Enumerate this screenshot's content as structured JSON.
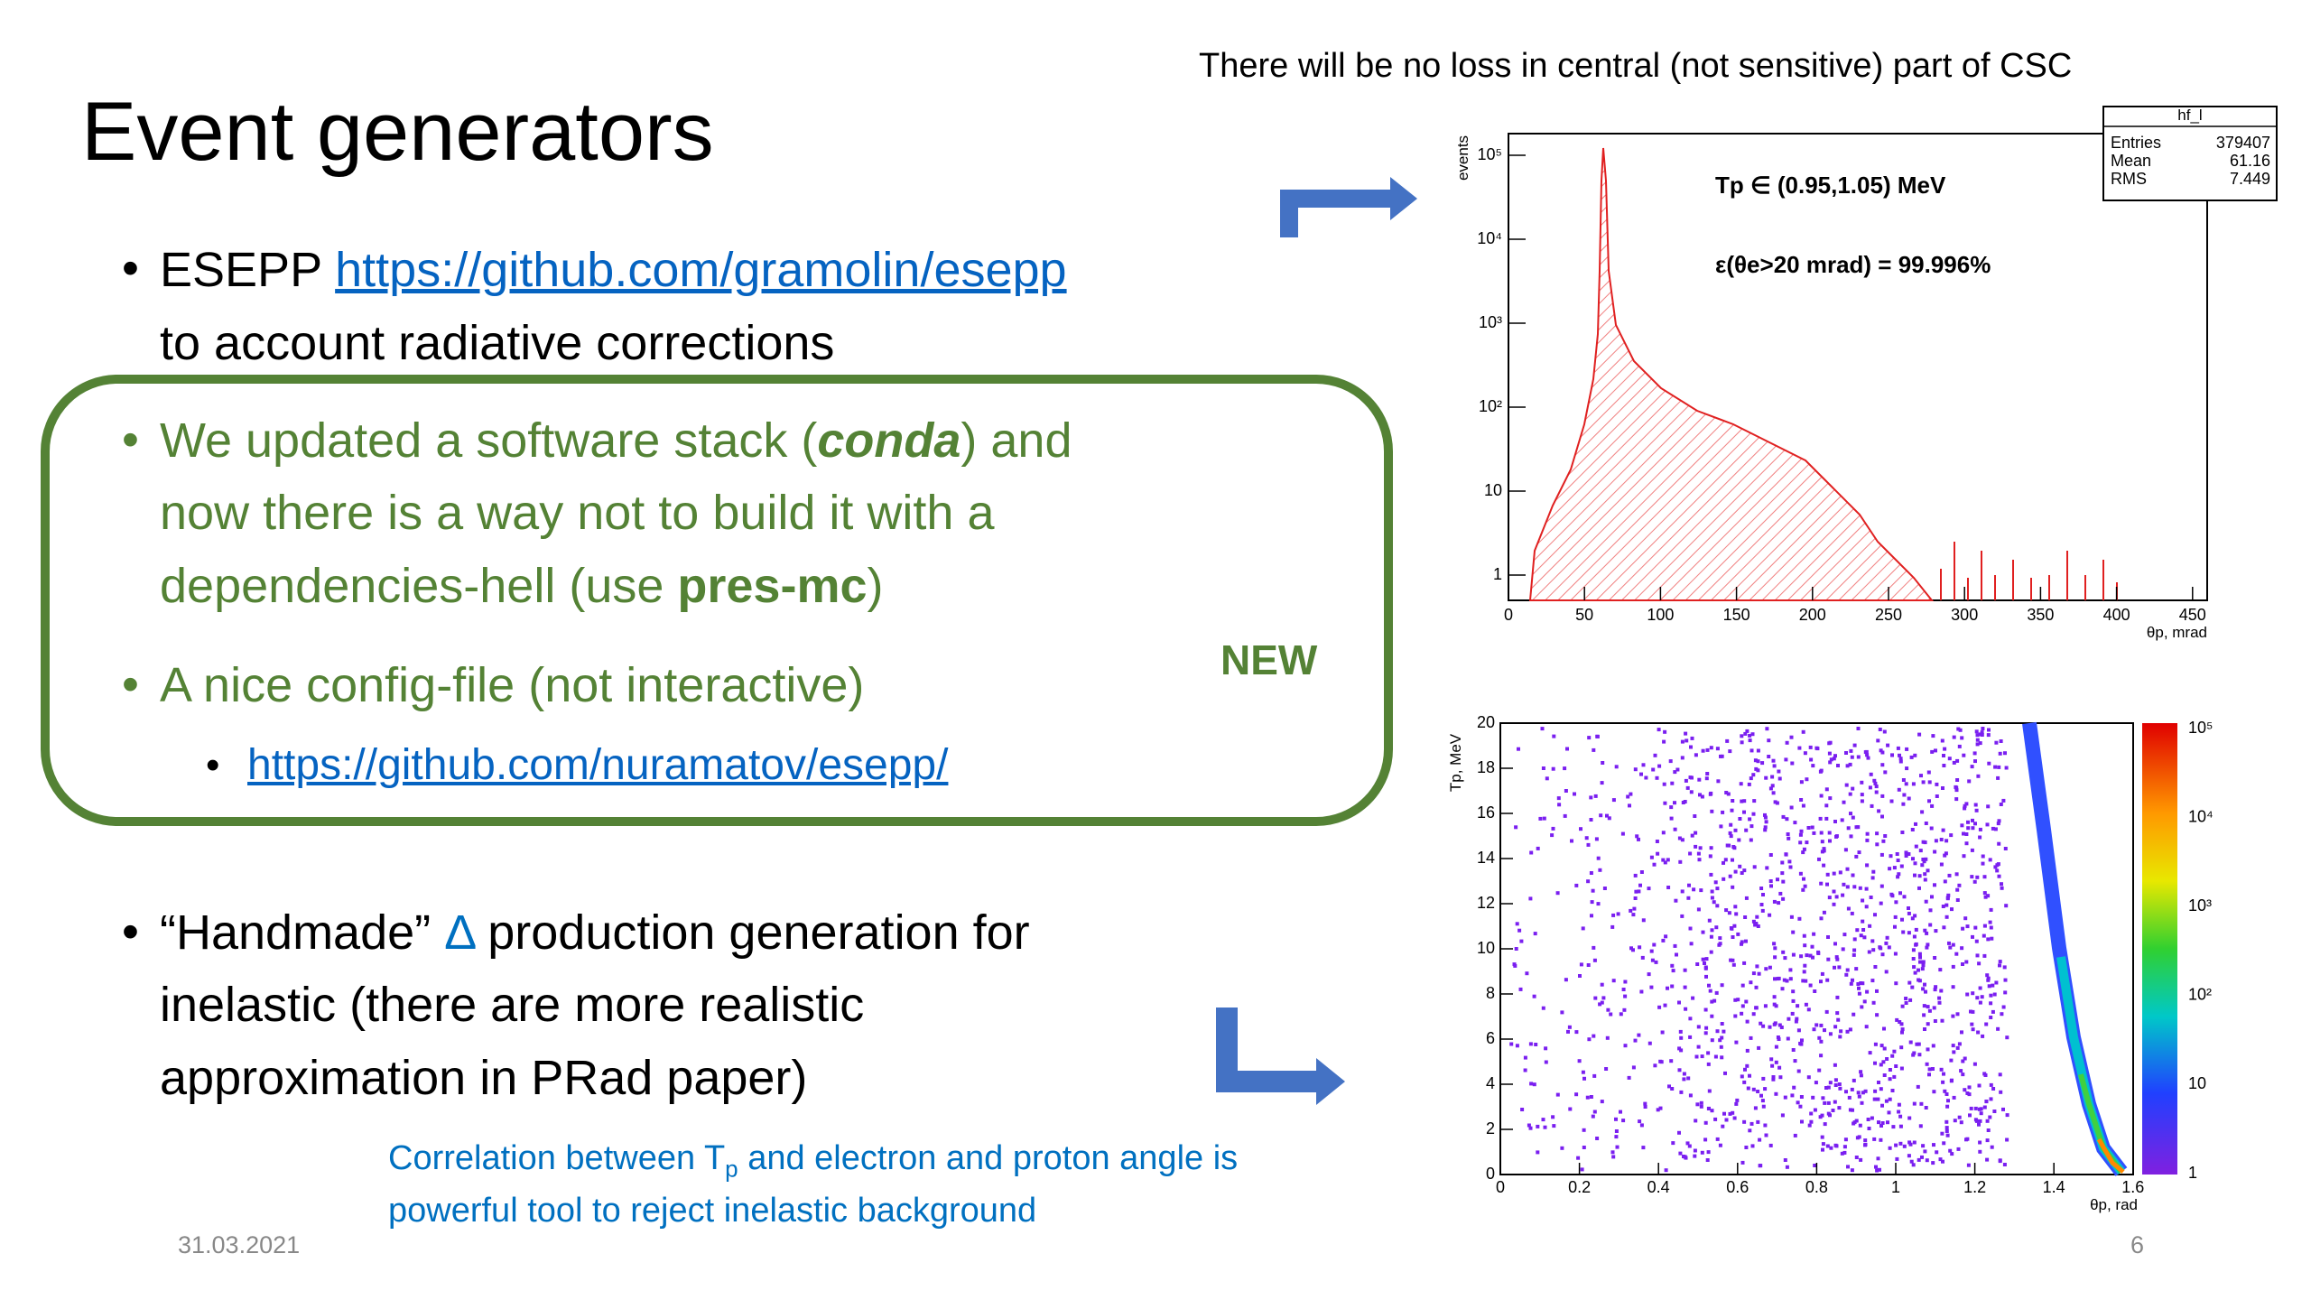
{
  "title": "Event generators",
  "note_top": "There will be no loss in central (not sensitive) part of CSC",
  "bullet1": {
    "label": "ESEPP ",
    "link": "https://github.com/gramolin/esepp",
    "cont": "to account radiative corrections"
  },
  "box": {
    "item1": {
      "l1a": "We updated a software stack (",
      "l1b": "conda",
      "l1c": ") and",
      "l2": "now there is a way not to build it with a",
      "l3a": "dependencies-hell (use ",
      "l3b": "pres-mc",
      "l3c": ")"
    },
    "item2": "A nice config-file (not interactive)",
    "sublink": "https://github.com/nuramatov/esepp/",
    "badge": "NEW"
  },
  "bullet3": {
    "l1a": "“Handmade” ",
    "l1b": "Δ",
    "l1c": " production generation for",
    "l2": "inelastic (there are more realistic",
    "l3": "approximation in PRad paper)"
  },
  "note_bottom": {
    "l1a": "Correlation between T",
    "l1b": "p",
    "l1c": " and electron and proton angle is",
    "l2": "powerful tool to reject inelastic background"
  },
  "footer": {
    "date": "31.03.2021",
    "page": "6"
  },
  "plot_top": {
    "stats_title": "hf_l",
    "stats": [
      [
        "Entries",
        "379407"
      ],
      [
        "Mean",
        "61.16"
      ],
      [
        "RMS",
        "7.449"
      ]
    ],
    "ann1": "Tp ∈ (0.95,1.05) MeV",
    "ann2": "ε(θe>20 mrad) = 99.996%",
    "ylabel": "events",
    "xlabel": "θp, mrad",
    "xticks": [
      "0",
      "50",
      "100",
      "150",
      "200",
      "250",
      "300",
      "350",
      "400",
      "450"
    ],
    "yticks": [
      "1",
      "10",
      "10²",
      "10³",
      "10⁴",
      "10⁵"
    ]
  },
  "plot_bottom": {
    "ylabel": "Tp, MeV",
    "xlabel": "θp, rad",
    "xticks": [
      "0",
      "0.2",
      "0.4",
      "0.6",
      "0.8",
      "1",
      "1.2",
      "1.4",
      "1.6"
    ],
    "yticks": [
      "0",
      "2",
      "4",
      "6",
      "8",
      "10",
      "12",
      "14",
      "16",
      "18",
      "20"
    ],
    "zticks": [
      "1",
      "10",
      "10²",
      "10³",
      "10⁴",
      "10⁵"
    ]
  }
}
